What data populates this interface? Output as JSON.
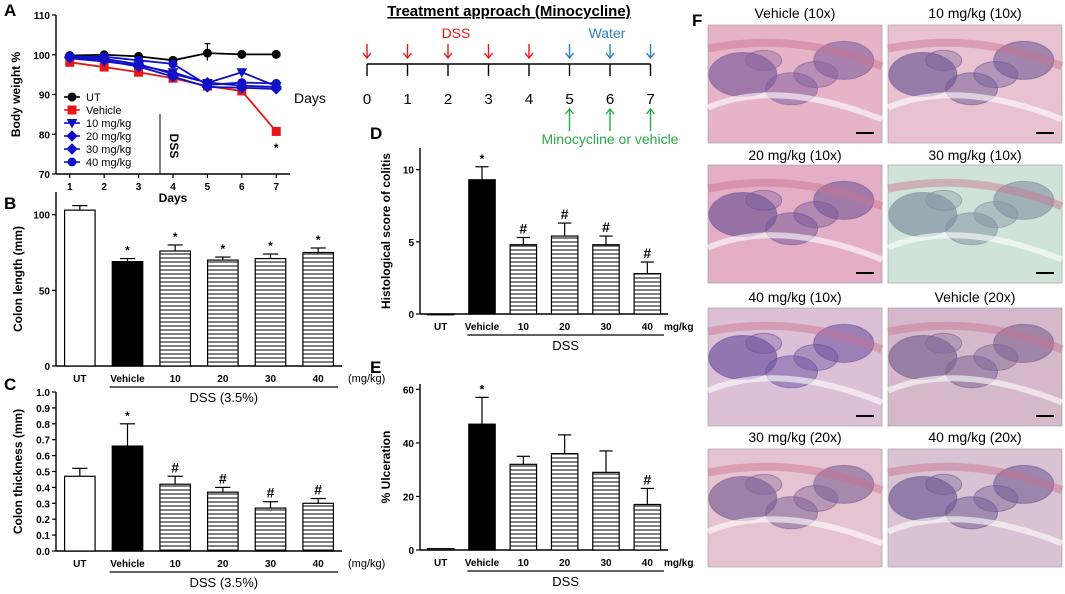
{
  "panel_labels": {
    "A": "A",
    "B": "B",
    "C": "C",
    "D": "D",
    "E": "E",
    "F": "F"
  },
  "colors": {
    "black": "#000000",
    "vehicle": "#e8161b",
    "dss": "#e8161b",
    "water": "#2d7fc3",
    "mino": "#2aa84a",
    "bar_hatch": "#000000"
  },
  "timeline": {
    "title": "Treatment approach (Minocycline)",
    "dss_label": "DSS",
    "water_label": "Water",
    "days_label": "Days",
    "day_ticks": [
      "0",
      "1",
      "2",
      "3",
      "4",
      "5",
      "6",
      "7"
    ],
    "treatment_label": "Minocycline or vehicle"
  },
  "micrographs": [
    {
      "label": "Vehicle (10x)",
      "bg": "#e7b3c7",
      "accent": "#7d5d9c"
    },
    {
      "label": "10 mg/kg (10x)",
      "bg": "#e9c2d2",
      "accent": "#6f5a96"
    },
    {
      "label": "20 mg/kg (10x)",
      "bg": "#e4aec6",
      "accent": "#715595"
    },
    {
      "label": "30 mg/kg (10x)",
      "bg": "#cfe3d8",
      "accent": "#7f8fa0"
    },
    {
      "label": "40 mg/kg (10x)",
      "bg": "#dcc0d6",
      "accent": "#6c52a0"
    },
    {
      "label": "Vehicle (20x)",
      "bg": "#d5b8c9",
      "accent": "#7a6192"
    },
    {
      "label": "30 mg/kg (20x)",
      "bg": "#e6c3d0",
      "accent": "#7a5f95"
    },
    {
      "label": "40 mg/kg (20x)",
      "bg": "#d9c2d3",
      "accent": "#6e5a93"
    }
  ],
  "chart_data": [
    {
      "id": "A",
      "type": "line",
      "title": "",
      "xlabel": "Days",
      "ylabel": "Body weight %",
      "x": [
        1,
        2,
        3,
        4,
        5,
        6,
        7
      ],
      "xticks": [
        "1",
        "2",
        "3",
        "4",
        "5",
        "6",
        "7"
      ],
      "yticks": [
        "70",
        "80",
        "90",
        "100",
        "110"
      ],
      "ylim": [
        70,
        110
      ],
      "xlim": [
        0.6,
        7.4
      ],
      "legend_position": "left",
      "legend_side_label": "DSS",
      "annotations": [
        {
          "x": 7,
          "y": 77.5,
          "text": "*"
        }
      ],
      "series": [
        {
          "name": "UT",
          "color": "#000000",
          "marker": "circle",
          "values": [
            99.8,
            100,
            99.6,
            98.6,
            100.4,
            100.1,
            100.1
          ]
        },
        {
          "name": "Vehicle",
          "color": "#e8161b",
          "marker": "square",
          "values": [
            98.1,
            96.9,
            95.6,
            94.1,
            92.1,
            90.9,
            80.7
          ]
        },
        {
          "name": "10 mg/kg",
          "color": "#1010c8",
          "marker": "triangle-down",
          "values": [
            99.1,
            98.3,
            97.3,
            95.6,
            92.9,
            95.6,
            92.1
          ]
        },
        {
          "name": "20 mg/kg",
          "color": "#1010c8",
          "marker": "diamond",
          "values": [
            99.2,
            98.6,
            97.0,
            94.5,
            91.9,
            91.7,
            91.4
          ]
        },
        {
          "name": "30 mg/kg",
          "color": "#1010c8",
          "marker": "diamond",
          "values": [
            99.5,
            99.0,
            97.6,
            95.2,
            93.0,
            92.2,
            91.9
          ]
        },
        {
          "name": "40 mg/kg",
          "color": "#1010c8",
          "marker": "circle",
          "values": [
            99.6,
            99.5,
            98.6,
            97.7,
            92.4,
            93.0,
            92.8
          ]
        }
      ]
    },
    {
      "id": "B",
      "type": "bar",
      "title": "",
      "ylabel": "Colon length (mm)",
      "xlabel": "DSS (3.5%)",
      "unit_label": "(mg/kg)",
      "categories": [
        "UT",
        "Vehicle",
        "10",
        "20",
        "30",
        "40"
      ],
      "values": [
        103,
        69,
        76,
        70,
        71,
        75
      ],
      "errors": [
        3,
        2,
        4,
        2,
        3,
        3
      ],
      "fills": [
        "white",
        "black",
        "hatch",
        "hatch",
        "hatch",
        "hatch"
      ],
      "marks": [
        "",
        "*",
        "*",
        "*",
        "*",
        "*"
      ],
      "yticks": [
        "0",
        "50",
        "100"
      ],
      "ylim": [
        0,
        115
      ]
    },
    {
      "id": "C",
      "type": "bar",
      "title": "",
      "ylabel": "Colon thickness (mm)",
      "xlabel": "DSS (3.5%)",
      "unit_label": "(mg/kg)",
      "categories": [
        "UT",
        "Vehicle",
        "10",
        "20",
        "30",
        "40"
      ],
      "values": [
        0.47,
        0.66,
        0.42,
        0.37,
        0.27,
        0.3
      ],
      "errors": [
        0.05,
        0.14,
        0.05,
        0.03,
        0.04,
        0.03
      ],
      "fills": [
        "white",
        "black",
        "hatch",
        "hatch",
        "hatch",
        "hatch"
      ],
      "marks": [
        "",
        "*",
        "#",
        "#",
        "#",
        "#"
      ],
      "yticks": [
        "0.0",
        "0.1",
        "0.2",
        "0.3",
        "0.4",
        "0.5",
        "0.6",
        "0.7",
        "0.8",
        "0.9",
        "1.0"
      ],
      "ylim": [
        0,
        1.0
      ]
    },
    {
      "id": "D",
      "type": "bar",
      "title": "",
      "ylabel": "Histological score of colitis",
      "xlabel": "DSS",
      "unit_label": "mg/kg",
      "categories": [
        "UT",
        "Vehicle",
        "10",
        "20",
        "30",
        "40"
      ],
      "values": [
        0,
        9.3,
        4.8,
        5.4,
        4.8,
        2.8
      ],
      "errors": [
        0,
        0.9,
        0.5,
        0.9,
        0.6,
        0.8
      ],
      "fills": [
        "white",
        "black",
        "hatch",
        "hatch",
        "hatch",
        "hatch"
      ],
      "marks": [
        "",
        "*",
        "#",
        "#",
        "#",
        "#"
      ],
      "yticks": [
        "0",
        "5",
        "10"
      ],
      "ylim": [
        0,
        11.5
      ]
    },
    {
      "id": "E",
      "type": "bar",
      "title": "",
      "ylabel": "% Ulceration",
      "xlabel": "DSS",
      "unit_label": "mg/kg",
      "categories": [
        "UT",
        "Vehicle",
        "10",
        "20",
        "30",
        "40"
      ],
      "values": [
        0.5,
        47,
        32,
        36,
        29,
        17
      ],
      "errors": [
        0,
        10,
        3,
        7,
        8,
        6
      ],
      "fills": [
        "white",
        "black",
        "hatch",
        "hatch",
        "hatch",
        "hatch"
      ],
      "marks": [
        "",
        "*",
        "",
        "",
        "",
        "#"
      ],
      "yticks": [
        "0",
        "20",
        "40",
        "60"
      ],
      "ylim": [
        0,
        62
      ]
    }
  ]
}
